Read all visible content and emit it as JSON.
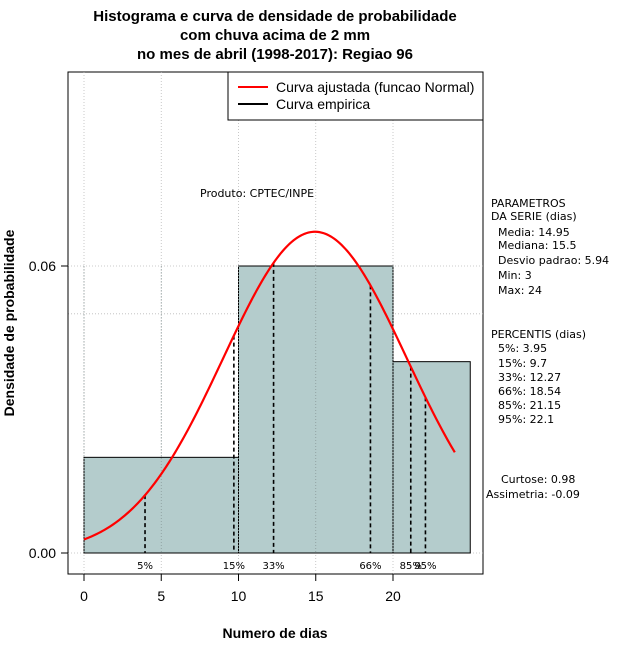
{
  "chart_data": {
    "type": "histogram",
    "title_lines": [
      "Histograma e curva de densidade de probabilidade",
      "com chuva acima de 2 mm",
      "no mes de abril (1998-2017): Regiao 96"
    ],
    "xlabel": "Numero de dias",
    "ylabel": "Densidade de probabilidade",
    "xlim": [
      -1,
      26
    ],
    "ylim": [
      -0.004,
      0.1
    ],
    "x_ticks": [
      0,
      5,
      10,
      15,
      20
    ],
    "x_tick_labels": [
      "0",
      "5",
      "10",
      "15",
      "20"
    ],
    "y_ticks": [
      0.0,
      0.06
    ],
    "y_tick_labels": [
      "0.00",
      "0.06"
    ],
    "grid": true,
    "grid_x": [
      0,
      5,
      10,
      15,
      20
    ],
    "grid_y": [
      0.0,
      0.06
    ],
    "bins": [
      {
        "start": 0,
        "end": 10,
        "density": 0.02
      },
      {
        "start": 10,
        "end": 20,
        "density": 0.06
      },
      {
        "start": 20,
        "end": 25,
        "density": 0.04
      }
    ],
    "fitted_curve": {
      "name": "Curva ajustada (funcao Normal)",
      "distribution": "normal",
      "mean": 14.95,
      "sd": 5.94,
      "x_range": [
        0,
        24
      ],
      "color": "#ff0000"
    },
    "legend": {
      "position": "top-right",
      "entries": [
        {
          "label": "Curva ajustada (funcao Normal)",
          "color": "#ff0000"
        },
        {
          "label": "Curva empirica",
          "color": "#000000"
        }
      ]
    },
    "product_label": "Produto: CPTEC/INPE",
    "percentiles": [
      {
        "label": "5%",
        "value": 3.95
      },
      {
        "label": "15%",
        "value": 9.7
      },
      {
        "label": "33%",
        "value": 12.27
      },
      {
        "label": "66%",
        "value": 18.54
      },
      {
        "label": "85%",
        "value": 21.15
      },
      {
        "label": "95%",
        "value": 22.1
      }
    ],
    "parameters_block": [
      "PARAMETROS",
      "DA SERIE (dias)",
      "Media: 14.95",
      "Mediana: 15.5",
      "Desvio padrao: 5.94",
      "Min: 3",
      "Max: 24"
    ],
    "percentiles_block": [
      "PERCENTIS (dias)",
      "5%: 3.95",
      "15%: 9.7",
      "33%: 12.27",
      "66%: 18.54",
      "85%: 21.15",
      "95%: 22.1"
    ],
    "stats_block": [
      "Curtose: 0.98",
      "Assimetria: -0.09"
    ]
  },
  "colors": {
    "bar_fill": "#b4cccc",
    "bar_stroke": "#000000",
    "curve": "#ff0000",
    "grid": "#bbbbbb"
  }
}
